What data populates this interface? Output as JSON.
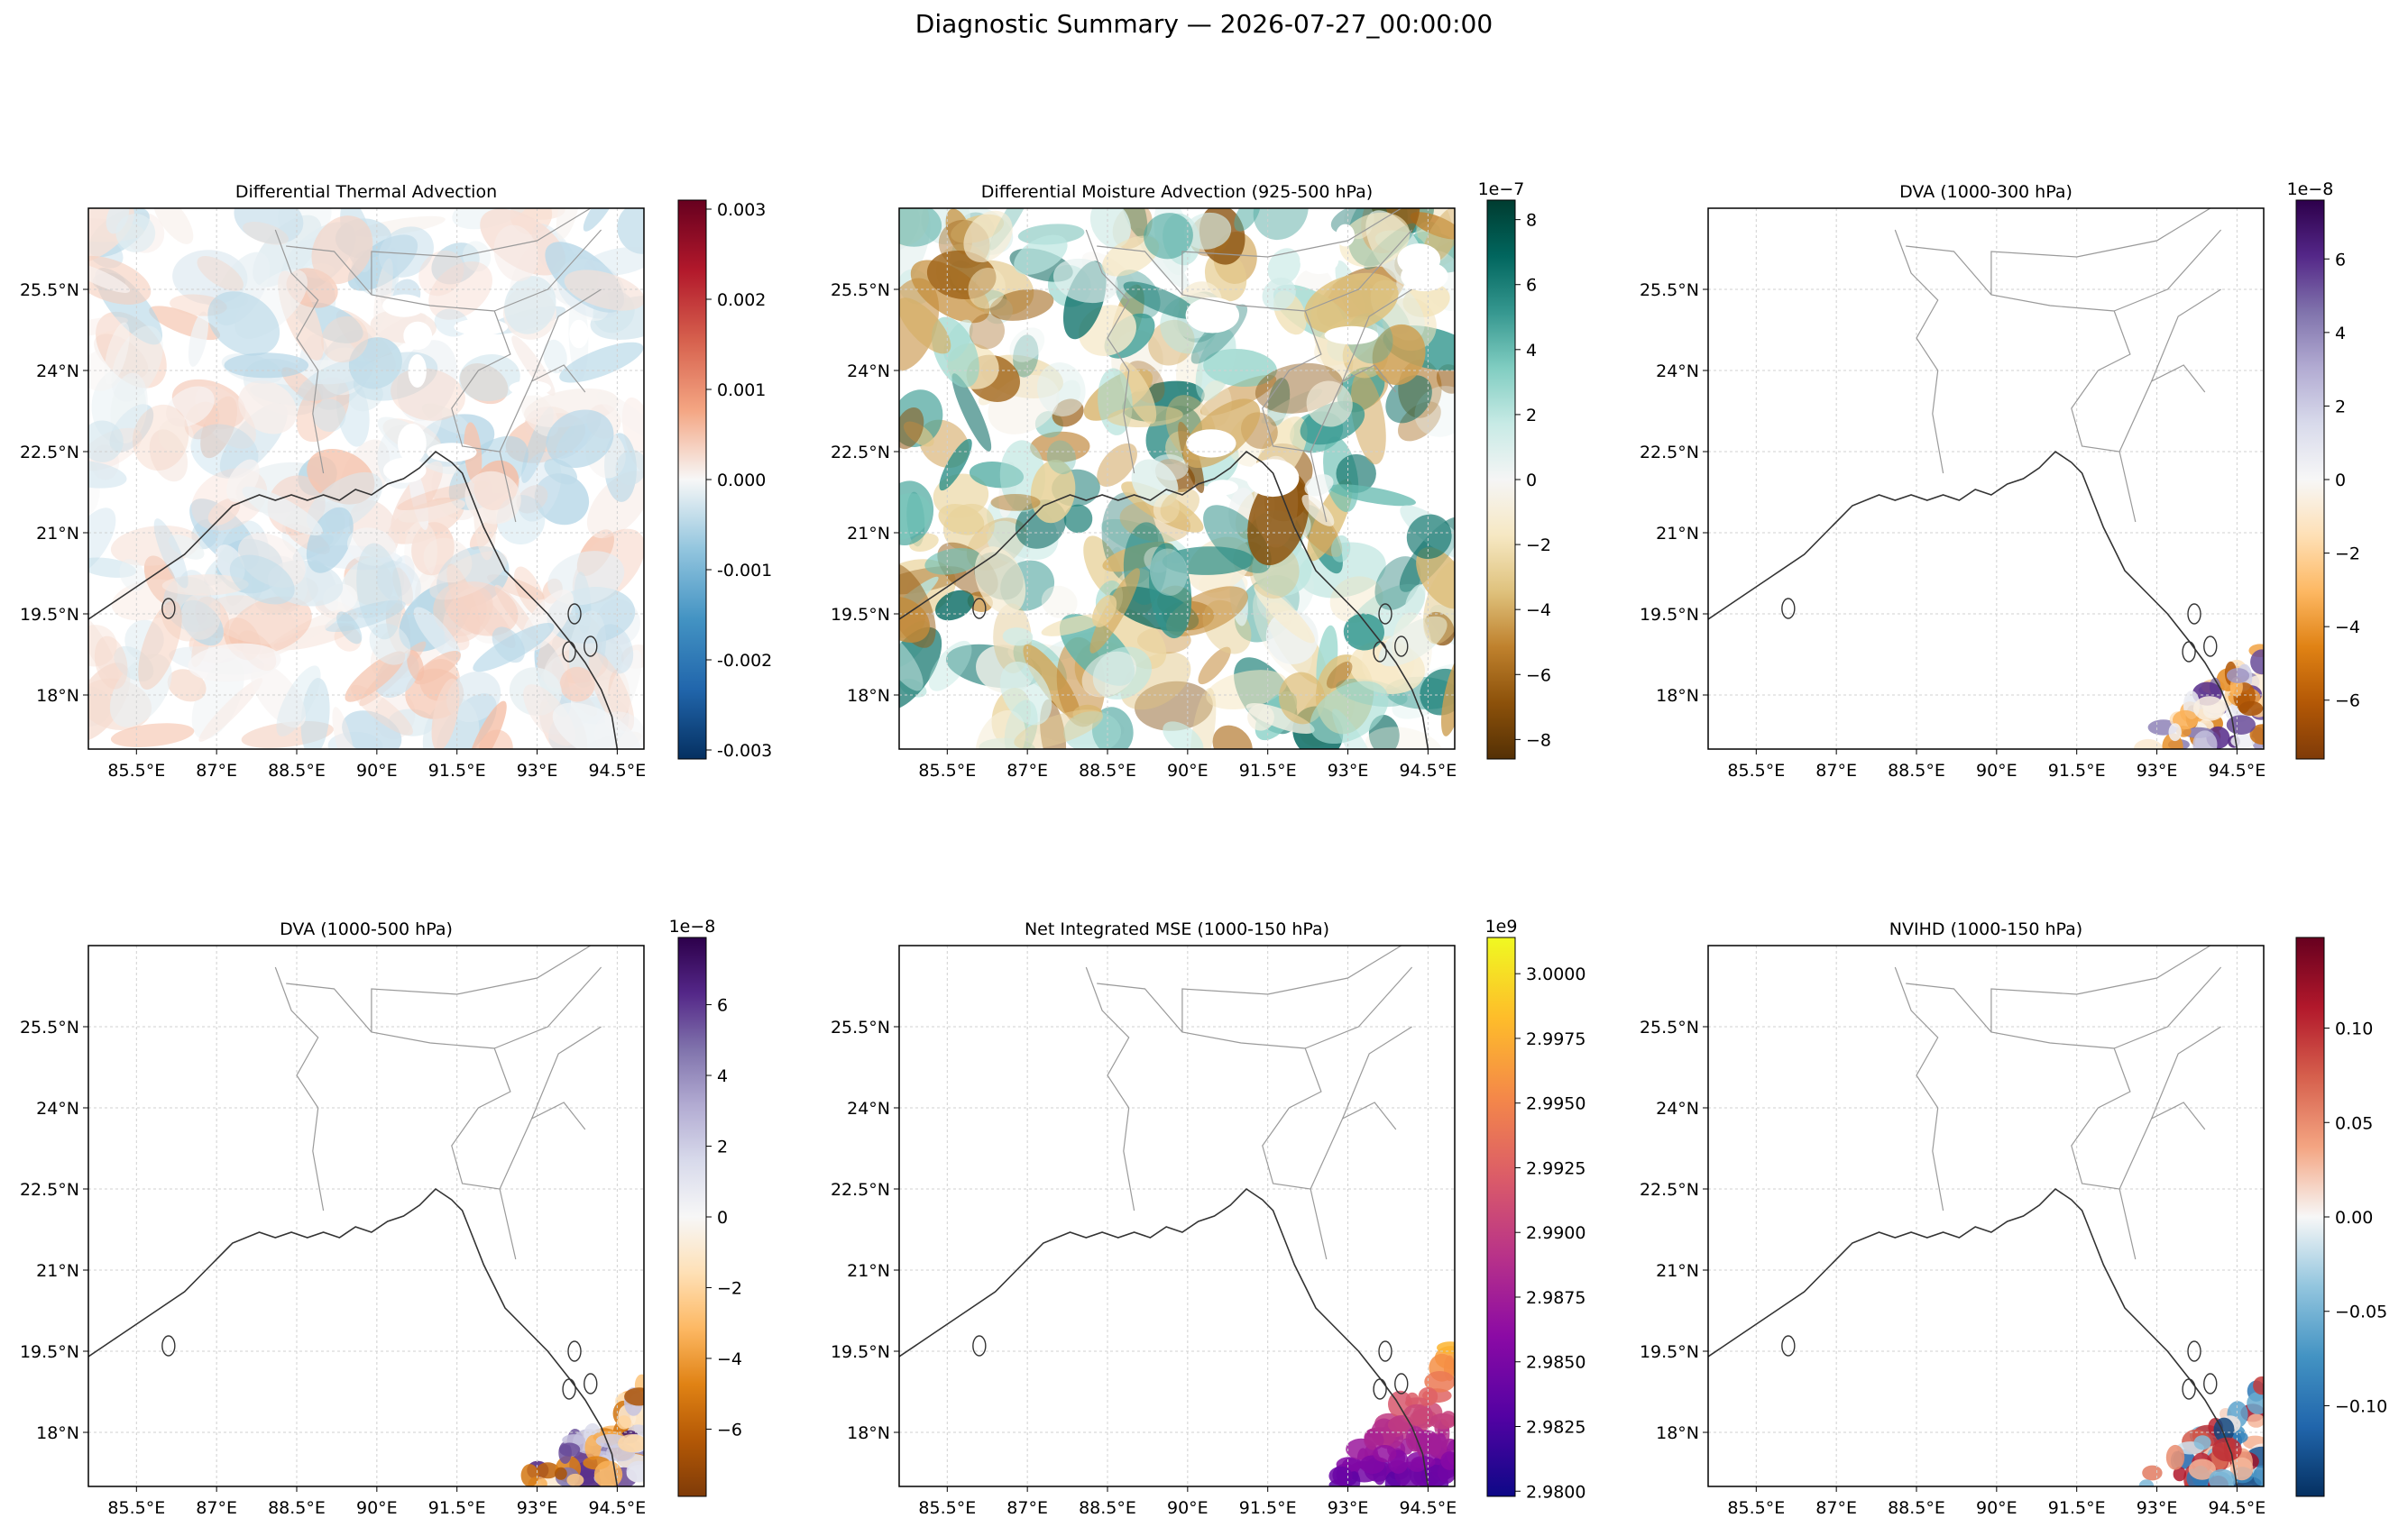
{
  "suptitle": "Diagnostic Summary — 2026-07-27_00:00:00",
  "x_ticks": [
    "85.5°E",
    "87°E",
    "88.5°E",
    "90°E",
    "91.5°E",
    "93°E",
    "94.5°E"
  ],
  "y_ticks": [
    "25.5°N",
    "24°N",
    "22.5°N",
    "21°N",
    "19.5°N",
    "18°N"
  ],
  "chart_data": [
    {
      "type": "heatmap",
      "title": "Differential Thermal Advection",
      "field": "full",
      "colormap": "RdBu_r",
      "colormap_colors": [
        "#053061",
        "#2166ac",
        "#4393c3",
        "#92c5de",
        "#f7f7f7",
        "#f4a582",
        "#d6604d",
        "#b2182b",
        "#67001f"
      ],
      "colorbar_range": [
        -0.0031,
        0.0031
      ],
      "colorbar_ticks": [
        "-0.003",
        "-0.002",
        "-0.001",
        "0.000",
        "0.001",
        "0.002",
        "0.003"
      ],
      "colorbar_tick_values": [
        -0.003,
        -0.002,
        -0.001,
        0.0,
        0.001,
        0.002,
        0.003
      ],
      "colorbar_offset": "",
      "xlim": [
        84.6,
        95.0
      ],
      "ylim": [
        17.0,
        27.0
      ]
    },
    {
      "type": "heatmap",
      "title": "Differential Moisture Advection (925-500 hPa)",
      "field": "full",
      "colormap": "BrBG",
      "colormap_colors": [
        "#543005",
        "#8c510a",
        "#bf812d",
        "#dfc27d",
        "#f6e8c3",
        "#f5f5f5",
        "#c7eae5",
        "#80cdc1",
        "#35978f",
        "#01665e",
        "#003c30"
      ],
      "colorbar_range": [
        -8.6,
        8.6
      ],
      "colorbar_ticks": [
        "−8",
        "−6",
        "−4",
        "−2",
        "0",
        "2",
        "4",
        "6",
        "8"
      ],
      "colorbar_tick_values": [
        -8,
        -6,
        -4,
        -2,
        0,
        2,
        4,
        6,
        8
      ],
      "colorbar_offset": "1e−7",
      "xlim": [
        84.6,
        95.0
      ],
      "ylim": [
        17.0,
        27.0
      ]
    },
    {
      "type": "heatmap",
      "title": "DVA (1000-300 hPa)",
      "field": "southeast",
      "colormap": "PuOr",
      "colormap_colors": [
        "#7f3b08",
        "#b35806",
        "#e08214",
        "#fdb863",
        "#fee0b6",
        "#f7f7f7",
        "#d8daeb",
        "#b2abd2",
        "#8073ac",
        "#542788",
        "#2d004b"
      ],
      "colorbar_range": [
        -7.6,
        7.6
      ],
      "colorbar_ticks": [
        "−6",
        "−4",
        "−2",
        "0",
        "2",
        "4",
        "6"
      ],
      "colorbar_tick_values": [
        -6,
        -4,
        -2,
        0,
        2,
        4,
        6
      ],
      "colorbar_offset": "1e−8",
      "xlim": [
        84.6,
        95.0
      ],
      "ylim": [
        17.0,
        27.0
      ]
    },
    {
      "type": "heatmap",
      "title": "DVA (1000-500 hPa)",
      "field": "southeast",
      "colormap": "PuOr",
      "colormap_colors": [
        "#7f3b08",
        "#b35806",
        "#e08214",
        "#fdb863",
        "#fee0b6",
        "#f7f7f7",
        "#d8daeb",
        "#b2abd2",
        "#8073ac",
        "#542788",
        "#2d004b"
      ],
      "colorbar_range": [
        -7.9,
        7.9
      ],
      "colorbar_ticks": [
        "−6",
        "−4",
        "−2",
        "0",
        "2",
        "4",
        "6"
      ],
      "colorbar_tick_values": [
        -6,
        -4,
        -2,
        0,
        2,
        4,
        6
      ],
      "colorbar_offset": "1e−8",
      "xlim": [
        84.6,
        95.0
      ],
      "ylim": [
        17.0,
        27.0
      ]
    },
    {
      "type": "heatmap",
      "title": "Net Integrated MSE (1000-150 hPa)",
      "field": "southeast",
      "colormap": "plasma",
      "colormap_colors": [
        "#0d0887",
        "#5302a3",
        "#8b0aa5",
        "#b83289",
        "#db5c68",
        "#f48849",
        "#febd2a",
        "#f0f921"
      ],
      "colorbar_range": [
        2.9798,
        3.0014
      ],
      "colorbar_ticks": [
        "2.9800",
        "2.9825",
        "2.9850",
        "2.9875",
        "2.9900",
        "2.9925",
        "2.9950",
        "2.9975",
        "3.0000"
      ],
      "colorbar_tick_values": [
        2.98,
        2.9825,
        2.985,
        2.9875,
        2.99,
        2.9925,
        2.995,
        2.9975,
        3.0
      ],
      "colorbar_offset": "1e9",
      "xlim": [
        84.6,
        95.0
      ],
      "ylim": [
        17.0,
        27.0
      ]
    },
    {
      "type": "heatmap",
      "title": "NVIHD (1000-150 hPa)",
      "field": "southeast",
      "colormap": "RdBu_r",
      "colormap_colors": [
        "#053061",
        "#2166ac",
        "#4393c3",
        "#92c5de",
        "#f7f7f7",
        "#f4a582",
        "#d6604d",
        "#b2182b",
        "#67001f"
      ],
      "colorbar_range": [
        -0.148,
        0.148
      ],
      "colorbar_ticks": [
        "−0.10",
        "−0.05",
        "0.00",
        "0.05",
        "0.10"
      ],
      "colorbar_tick_values": [
        -0.1,
        -0.05,
        0.0,
        0.05,
        0.1
      ],
      "colorbar_offset": "",
      "xlim": [
        84.6,
        95.0
      ],
      "ylim": [
        17.0,
        27.0
      ]
    }
  ]
}
